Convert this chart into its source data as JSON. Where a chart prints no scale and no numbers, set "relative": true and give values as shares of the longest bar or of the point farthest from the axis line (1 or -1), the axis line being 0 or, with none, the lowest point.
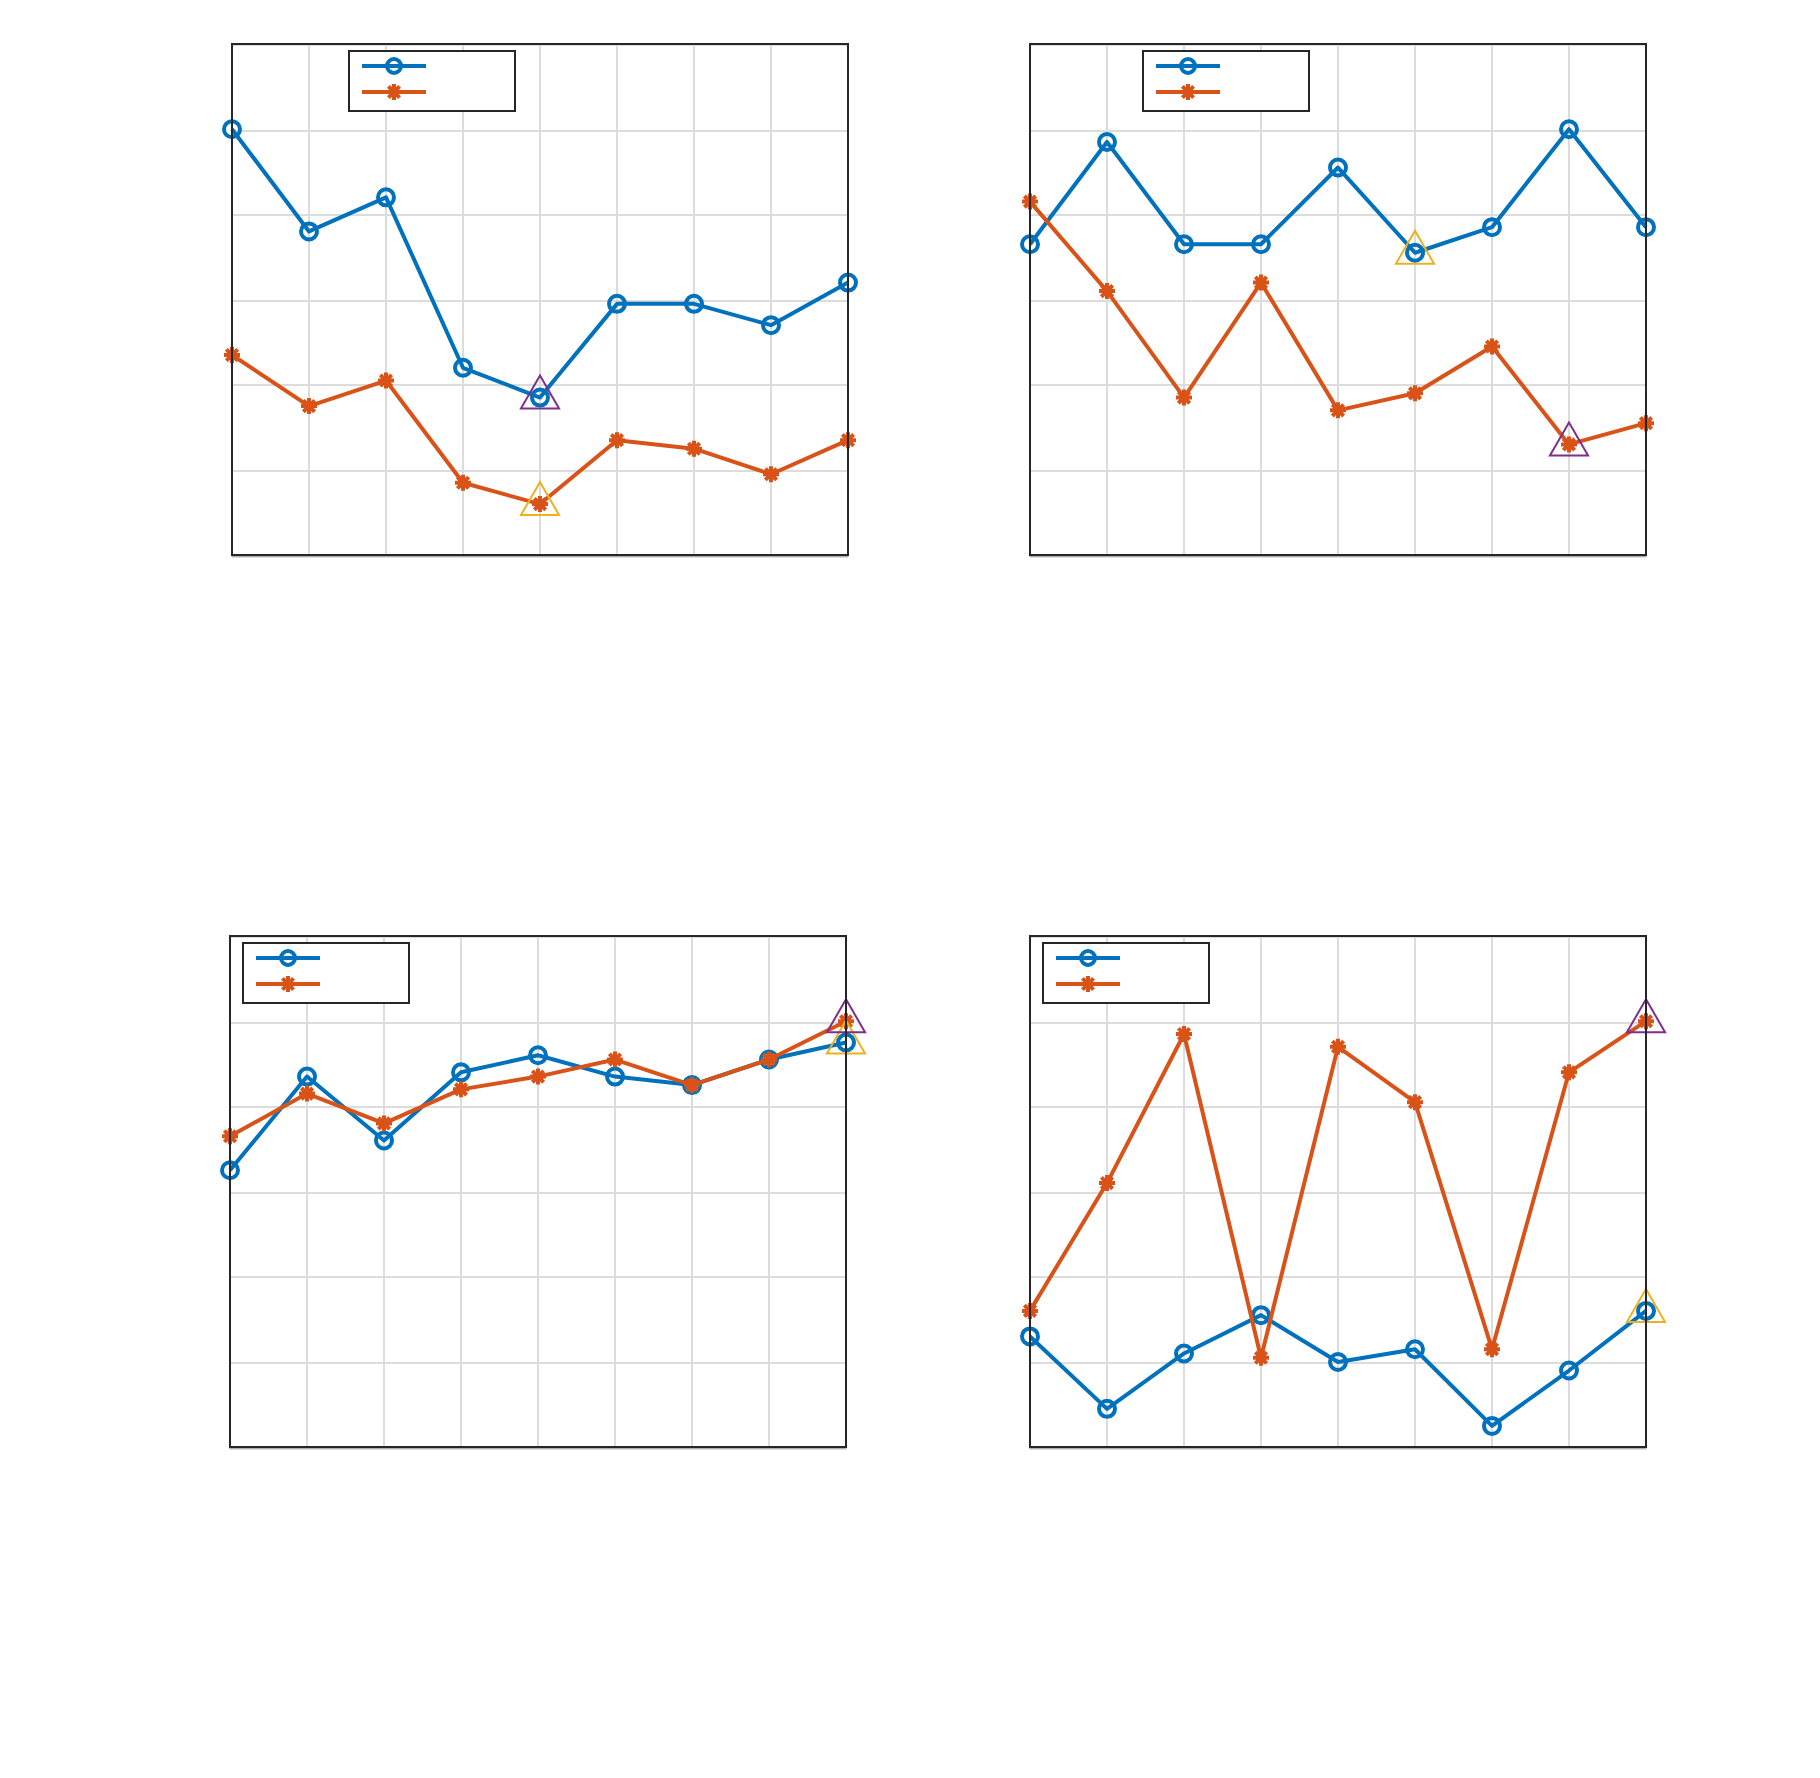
{
  "chart_data": [
    {
      "type": "line",
      "relative": true,
      "grid": true,
      "categories": [
        null,
        null,
        null,
        null,
        null,
        null,
        null,
        null,
        null
      ],
      "series": [
        {
          "type": "line",
          "marker": "circle",
          "color": "#0072bd",
          "values": [
            1,
            0.76,
            0.84,
            0.44,
            0.37,
            0.59,
            0.59,
            0.54,
            0.64
          ]
        },
        {
          "type": "line",
          "marker": "cross",
          "color": "#d95319",
          "values": [
            0.47,
            0.35,
            0.41,
            0.17,
            0.12,
            0.27,
            0.25,
            0.19,
            0.27
          ]
        },
        {
          "type": "line",
          "marker": "triangle",
          "color": "#7e2f8e",
          "values": [
            null,
            null,
            null,
            null,
            0.37,
            null,
            null,
            null,
            null
          ]
        },
        {
          "type": "line",
          "marker": "triangle",
          "color": "#edb120",
          "values": [
            null,
            null,
            null,
            null,
            0.12,
            null,
            null,
            null,
            null
          ]
        }
      ]
    },
    {
      "type": "line",
      "relative": true,
      "grid": true,
      "categories": [
        null,
        null,
        null,
        null,
        null,
        null,
        null,
        null,
        null
      ],
      "series": [
        {
          "type": "line",
          "marker": "circle",
          "color": "#0072bd",
          "values": [
            0.73,
            0.97,
            0.73,
            0.73,
            0.91,
            0.71,
            0.77,
            1,
            0.77
          ]
        },
        {
          "type": "line",
          "marker": "cross",
          "color": "#d95319",
          "values": [
            0.83,
            0.62,
            0.37,
            0.64,
            0.34,
            0.38,
            0.49,
            0.26,
            0.31
          ]
        },
        {
          "type": "line",
          "marker": "triangle",
          "color": "#edb120",
          "values": [
            null,
            null,
            null,
            null,
            null,
            0.71,
            null,
            null,
            null
          ]
        },
        {
          "type": "line",
          "marker": "triangle",
          "color": "#7e2f8e",
          "values": [
            null,
            null,
            null,
            null,
            null,
            null,
            null,
            0.26,
            null
          ]
        }
      ]
    },
    {
      "type": "line",
      "relative": true,
      "grid": true,
      "categories": [
        null,
        null,
        null,
        null,
        null,
        null,
        null,
        null,
        null
      ],
      "series": [
        {
          "type": "line",
          "marker": "circle",
          "color": "#0072bd",
          "values": [
            0.65,
            0.87,
            0.72,
            0.88,
            0.92,
            0.87,
            0.85,
            0.91,
            0.95
          ]
        },
        {
          "type": "line",
          "marker": "cross",
          "color": "#d95319",
          "values": [
            0.73,
            0.83,
            0.76,
            0.84,
            0.87,
            0.91,
            0.85,
            0.91,
            1
          ]
        },
        {
          "type": "line",
          "marker": "triangle",
          "color": "#7e2f8e",
          "values": [
            null,
            null,
            null,
            null,
            null,
            null,
            null,
            null,
            1
          ]
        },
        {
          "type": "line",
          "marker": "triangle",
          "color": "#edb120",
          "values": [
            null,
            null,
            null,
            null,
            null,
            null,
            null,
            null,
            0.95
          ]
        }
      ]
    },
    {
      "type": "line",
      "relative": true,
      "grid": true,
      "categories": [
        null,
        null,
        null,
        null,
        null,
        null,
        null,
        null,
        null
      ],
      "series": [
        {
          "type": "line",
          "marker": "circle",
          "color": "#0072bd",
          "values": [
            0.26,
            0.09,
            0.22,
            0.31,
            0.2,
            0.23,
            0.05,
            0.18,
            0.32
          ]
        },
        {
          "type": "line",
          "marker": "cross",
          "color": "#d95319",
          "values": [
            0.32,
            0.62,
            0.97,
            0.21,
            0.94,
            0.81,
            0.23,
            0.88,
            1
          ]
        },
        {
          "type": "line",
          "marker": "triangle",
          "color": "#7e2f8e",
          "values": [
            null,
            null,
            null,
            null,
            null,
            null,
            null,
            null,
            1
          ]
        },
        {
          "type": "line",
          "marker": "triangle",
          "color": "#edb120",
          "values": [
            null,
            null,
            null,
            null,
            null,
            null,
            null,
            null,
            0.32
          ]
        }
      ]
    }
  ]
}
